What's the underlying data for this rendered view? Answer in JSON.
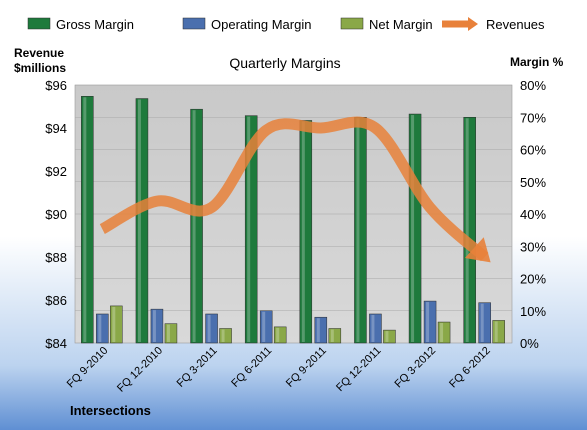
{
  "chart_data": {
    "type": "bar",
    "title": "Quarterly Margins",
    "left_axis_title": [
      "Revenue",
      "$millions"
    ],
    "right_axis_title": "Margin %",
    "footer_label": "Intersections",
    "categories": [
      "FQ 9-2010",
      "FQ 12-2010",
      "FQ 3-2011",
      "FQ 6-2011",
      "FQ 9-2011",
      "FQ 12-2011",
      "FQ 3-2012",
      "FQ 6-2012"
    ],
    "left_axis": {
      "min": 84,
      "max": 96,
      "ticks": [
        "$84",
        "$86",
        "$88",
        "$90",
        "$92",
        "$94",
        "$96"
      ]
    },
    "right_axis": {
      "min": 0,
      "max": 80,
      "ticks": [
        "0%",
        "10%",
        "20%",
        "30%",
        "40%",
        "50%",
        "60%",
        "70%",
        "80%"
      ]
    },
    "grid": true,
    "legend_position": "top",
    "series": [
      {
        "name": "Gross Margin",
        "kind": "bar",
        "axis": "right",
        "color": "#1e7a3c",
        "values": [
          76.5,
          75.8,
          72.5,
          70.5,
          69.0,
          70.0,
          71.0,
          70.0
        ]
      },
      {
        "name": "Operating Margin",
        "kind": "bar",
        "axis": "right",
        "color": "#4a6fae",
        "values": [
          9.0,
          10.5,
          9.0,
          10.0,
          8.0,
          9.0,
          13.0,
          12.5
        ]
      },
      {
        "name": "Net Margin",
        "kind": "bar",
        "axis": "right",
        "color": "#8aa848",
        "values": [
          11.5,
          6.0,
          4.5,
          5.0,
          4.5,
          4.0,
          6.5,
          7.0
        ]
      },
      {
        "name": "Revenues",
        "kind": "line",
        "axis": "left",
        "color": "#e8813a",
        "values": [
          89.3,
          90.6,
          90.3,
          93.9,
          94.0,
          94.0,
          90.3,
          88.0
        ]
      }
    ]
  }
}
